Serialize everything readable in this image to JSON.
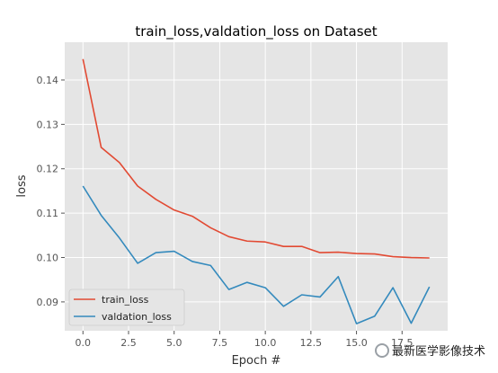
{
  "chart_data": {
    "type": "line",
    "title": "train_loss,valdation_loss on Dataset",
    "xlabel": "Epoch #",
    "ylabel": "loss",
    "xlim": [
      -1,
      20
    ],
    "ylim": [
      0.0835,
      0.1485
    ],
    "xticks": [
      0,
      2.5,
      5,
      7.5,
      10,
      12.5,
      15,
      17.5
    ],
    "xtick_labels": [
      "0.0",
      "2.5",
      "5.0",
      "7.5",
      "10.0",
      "12.5",
      "15.0",
      "17.5"
    ],
    "yticks": [
      0.09,
      0.1,
      0.11,
      0.12,
      0.13,
      0.14
    ],
    "ytick_labels": [
      "0.09",
      "0.10",
      "0.11",
      "0.12",
      "0.13",
      "0.14"
    ],
    "grid": true,
    "legend_position": "lower-left",
    "x": [
      0,
      1,
      2,
      3,
      4,
      5,
      6,
      7,
      8,
      9,
      10,
      11,
      12,
      13,
      14,
      15,
      16,
      17,
      18,
      19
    ],
    "series": [
      {
        "name": "train_loss",
        "color": "#E24A33",
        "values": [
          0.1447,
          0.1248,
          0.1214,
          0.1161,
          0.1131,
          0.1107,
          0.1093,
          0.1067,
          0.1047,
          0.1037,
          0.1035,
          0.1025,
          0.1025,
          0.1011,
          0.1012,
          0.1009,
          0.1008,
          0.1002,
          0.1,
          0.0999
        ]
      },
      {
        "name": "valdation_loss",
        "color": "#348ABD",
        "values": [
          0.1161,
          0.1095,
          0.1044,
          0.0987,
          0.1011,
          0.1014,
          0.0991,
          0.0982,
          0.0928,
          0.0944,
          0.0932,
          0.089,
          0.0916,
          0.0911,
          0.0957,
          0.0851,
          0.0868,
          0.0932,
          0.0852,
          0.0934
        ]
      }
    ]
  },
  "watermark": {
    "text": "最新医学影像技术",
    "icon": "wechat-icon"
  }
}
